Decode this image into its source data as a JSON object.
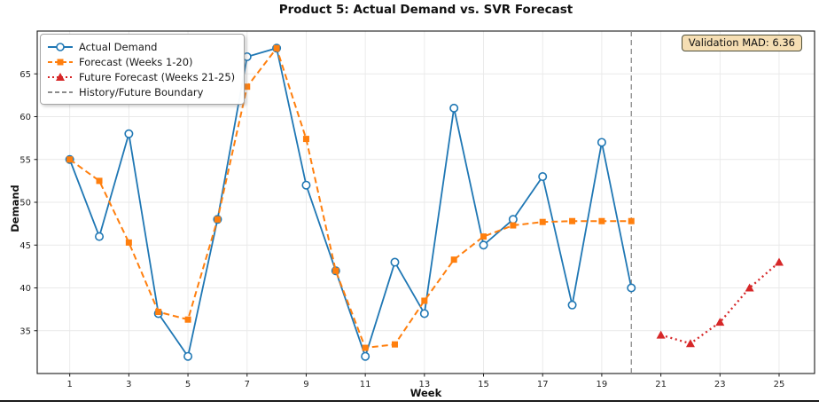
{
  "figure": {
    "title": "Product 5: Actual Demand vs. SVR Forecast",
    "badge": "Validation MAD: 6.36"
  },
  "colors": {
    "actual": "#1f77b4",
    "forecast": "#ff7f0e",
    "future": "#d62728",
    "boundary": "#8c8c8c",
    "grid": "#e9e9e9",
    "frame": "#1a1a1a",
    "tick_text": "#262626",
    "badge_bg": "#f5deb3"
  },
  "chart_data": {
    "type": "line",
    "title": "Product 5: Actual Demand vs. SVR Forecast",
    "xlabel": "Week",
    "ylabel": "Demand",
    "xlim": [
      -0.1,
      26.2
    ],
    "ylim": [
      30,
      70
    ],
    "x_ticks": [
      1,
      3,
      5,
      7,
      9,
      11,
      13,
      15,
      17,
      19,
      21,
      23,
      25
    ],
    "y_ticks": [
      35,
      40,
      45,
      50,
      55,
      60,
      65
    ],
    "grid": true,
    "legend_position": "upper-left",
    "boundary_x": 20,
    "series": [
      {
        "name": "Actual Demand",
        "style": "solid",
        "marker": "circle-open",
        "color": "#1f77b4",
        "x": [
          1,
          2,
          3,
          4,
          5,
          6,
          7,
          8,
          9,
          10,
          11,
          12,
          13,
          14,
          15,
          16,
          17,
          18,
          19,
          20
        ],
        "values": [
          55,
          46,
          58,
          37,
          32,
          48,
          67,
          68,
          52,
          42,
          32,
          43,
          37,
          61,
          45,
          48,
          53,
          38,
          57,
          40
        ]
      },
      {
        "name": "Forecast (Weeks 1-20)",
        "style": "dashed",
        "marker": "square",
        "color": "#ff7f0e",
        "x": [
          1,
          2,
          3,
          4,
          5,
          6,
          7,
          8,
          9,
          10,
          11,
          12,
          13,
          14,
          15,
          16,
          17,
          18,
          19,
          20
        ],
        "values": [
          55,
          52.5,
          45.3,
          37.2,
          36.3,
          48,
          63.5,
          68,
          57.4,
          42,
          33,
          33.4,
          38.5,
          43.3,
          46,
          47.3,
          47.7,
          47.8,
          47.8,
          47.8
        ]
      },
      {
        "name": "Future Forecast (Weeks 21-25)",
        "style": "dotted",
        "marker": "triangle",
        "color": "#d62728",
        "x": [
          21,
          22,
          23,
          24,
          25
        ],
        "values": [
          34.5,
          33.5,
          36,
          40,
          43
        ]
      },
      {
        "name": "History/Future Boundary",
        "style": "dashed",
        "marker": "none",
        "color": "#8c8c8c",
        "is_boundary": true
      }
    ]
  }
}
